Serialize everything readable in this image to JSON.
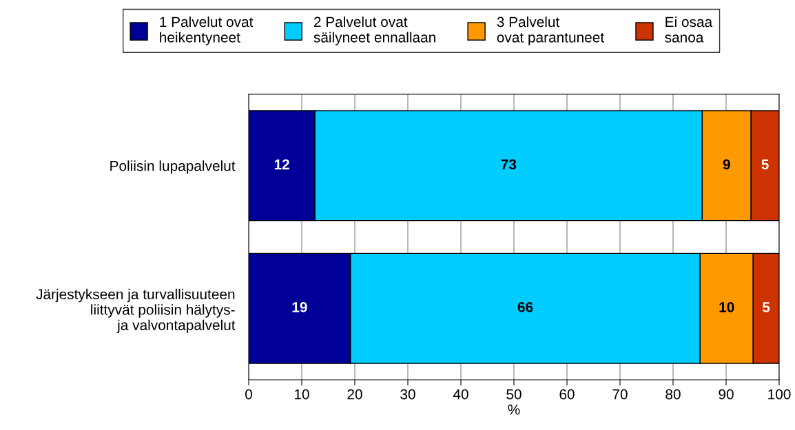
{
  "chart_data": {
    "type": "bar",
    "orientation": "horizontal",
    "stacked": true,
    "xlabel": "%",
    "categories": [
      "Poliisin lupapalvelut",
      "Järjestykseen ja turvallisuuteen\nliittyvät poliisin hälytys-\nja valvontapalvelut"
    ],
    "series": [
      {
        "name": "1 Palvelut ovat\nheikentyneet",
        "color": "#000099",
        "values": [
          12.5,
          19.2
        ],
        "value_labels": [
          "12",
          "19"
        ]
      },
      {
        "name": "2 Palvelut ovat\nsäilyneet ennallaan",
        "color": "#00ccff",
        "values": [
          73.0,
          65.9
        ],
        "value_labels": [
          "73",
          "66"
        ]
      },
      {
        "name": "3 Palvelut\novat parantuneet",
        "color": "#ff9900",
        "values": [
          9.2,
          10.0
        ],
        "value_labels": [
          "9",
          "10"
        ]
      },
      {
        "name": "Ei osaa\nsanoa",
        "color": "#cc3300",
        "values": [
          5.3,
          4.9
        ],
        "value_labels": [
          "5",
          "5"
        ]
      }
    ],
    "xlim": [
      0,
      100
    ],
    "xticks": [
      0,
      10,
      20,
      30,
      40,
      50,
      60,
      70,
      80,
      90,
      100
    ],
    "grid": "x",
    "legend": "top"
  }
}
